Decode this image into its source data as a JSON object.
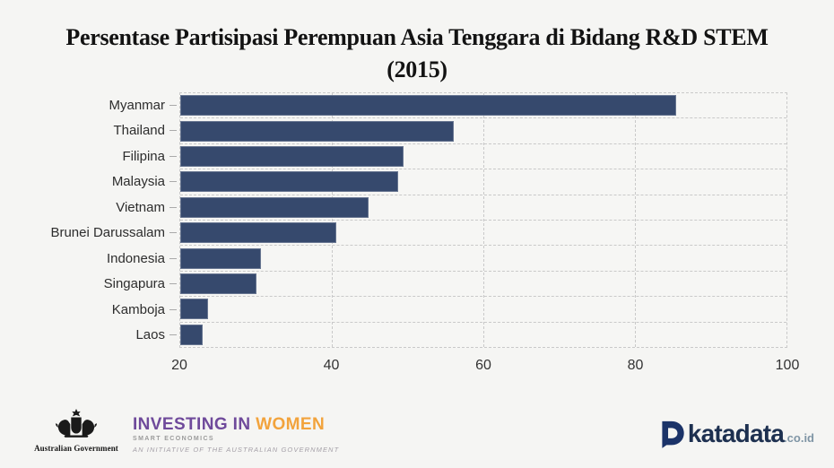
{
  "title": {
    "line1": "Persentase Partisipasi Perempuan Asia Tenggara di Bidang R&D STEM",
    "line2": "(2015)"
  },
  "chart_data": {
    "type": "bar",
    "orientation": "horizontal",
    "title": "Persentase Partisipasi Perempuan Asia Tenggara di Bidang R&D STEM (2015)",
    "categories": [
      "Myanmar",
      "Thailand",
      "Filipina",
      "Malaysia",
      "Vietnam",
      "Brunei Darussalam",
      "Indonesia",
      "Singapura",
      "Kamboja",
      "Laos"
    ],
    "values": [
      85.5,
      56.1,
      49.5,
      48.7,
      44.8,
      40.6,
      30.6,
      30.1,
      23.7,
      23.0
    ],
    "unit": "percent",
    "xlabel": "",
    "ylabel": "",
    "xlim": [
      20,
      100
    ],
    "xticks": [
      20,
      40,
      60,
      80,
      100
    ],
    "grid": "dashed vertical gridlines and dashed row separators, dashed plot border",
    "legend": "none",
    "bar_color": "#36496d"
  },
  "footer": {
    "australian_government": {
      "label": "Australian Government",
      "brand_line": [
        "INVESTING IN",
        "WOMEN"
      ],
      "subtitle": "SMART ECONOMICS",
      "initiative": "AN INITIATIVE OF THE AUSTRALIAN GOVERNMENT"
    },
    "katadata": {
      "name": "katadata",
      "domain": ".co.id"
    }
  },
  "colors": {
    "background": "#f5f5f3",
    "bar": "#36496d",
    "grid": "#c9c9c9",
    "title_text": "#131313",
    "axis_text": "#333333",
    "iw_purple": "#6f4a9b",
    "iw_orange": "#f2a33c",
    "iw_gray": "#9b9b9b",
    "katadata_navy": "#1d3050",
    "katadata_icon_navy": "#1b3368",
    "katadata_domain_gray": "#7f95a5"
  }
}
